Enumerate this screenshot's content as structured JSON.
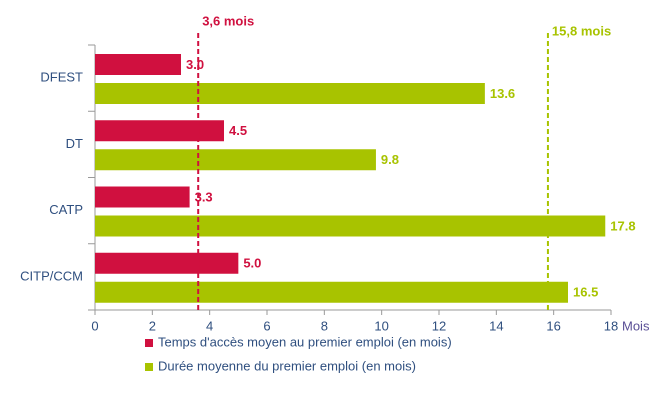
{
  "chart_data": {
    "type": "barh",
    "categories": [
      "DFEST",
      "DT",
      "CATP",
      "CITP/CCM"
    ],
    "series": [
      {
        "name": "Temps d'accès moyen au premier emploi (en mois)",
        "color": "#d0103f",
        "values": [
          3.0,
          4.5,
          3.3,
          5.0
        ],
        "value_labels": [
          "3.0",
          "4.5",
          "3.3",
          "5.0"
        ]
      },
      {
        "name": "Durée moyenne du premier emploi (en mois)",
        "color": "#a8c300",
        "values": [
          13.6,
          9.8,
          17.8,
          16.5
        ],
        "value_labels": [
          "13.6",
          "9.8",
          "17.8",
          "16.5"
        ]
      }
    ],
    "reference_lines": [
      {
        "value": 3.6,
        "label": "3,6 mois",
        "color": "#d0103f"
      },
      {
        "value": 15.8,
        "label": "15,8 mois",
        "color": "#a8c300"
      }
    ],
    "xlabel": "Mois",
    "xlim": [
      0,
      18
    ],
    "xticks": [
      0,
      2,
      4,
      6,
      8,
      10,
      12,
      14,
      16,
      18
    ],
    "grid": false,
    "legend": "bottom"
  }
}
